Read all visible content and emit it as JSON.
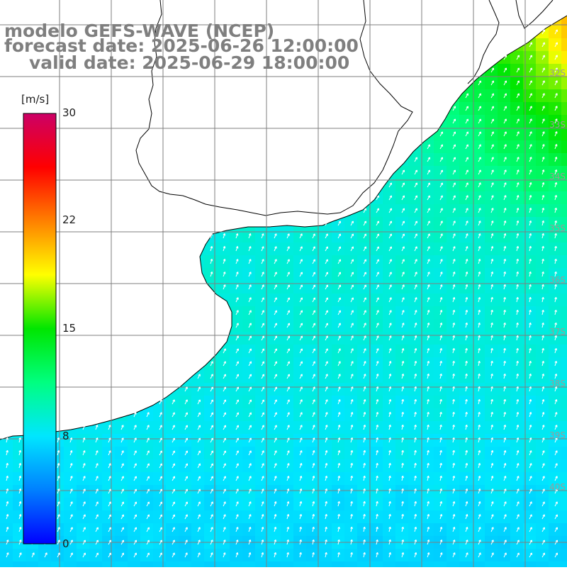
{
  "header": {
    "model_line": "modelo GEFS-WAVE (NCEP)",
    "forecast_line": "forecast date: 2025-06-26 12:00:00",
    "valid_line": "valid date: 2025-06-29 18:00:00"
  },
  "colorbar": {
    "unit": "[m/s]",
    "min": 0,
    "max": 30,
    "ticks": [
      {
        "label": "30",
        "value": 30
      },
      {
        "label": "22",
        "value": 22
      },
      {
        "label": "15",
        "value": 15
      },
      {
        "label": "8",
        "value": 8
      },
      {
        "label": "0",
        "value": 0
      }
    ],
    "stops": [
      "#0000ff",
      "#0080ff",
      "#00e6ff",
      "#00ff80",
      "#00e600",
      "#ffff00",
      "#ff8000",
      "#ff0000",
      "#cc0066"
    ]
  },
  "map": {
    "latitude_labels": [
      "32S",
      "33S",
      "34S",
      "35S",
      "36S",
      "37S",
      "38S",
      "39S",
      "40S"
    ],
    "colors": {
      "land": "#ffffff",
      "coastline": "#000000",
      "grid": "#7f7f7f",
      "arrow": "#ffffff"
    }
  }
}
